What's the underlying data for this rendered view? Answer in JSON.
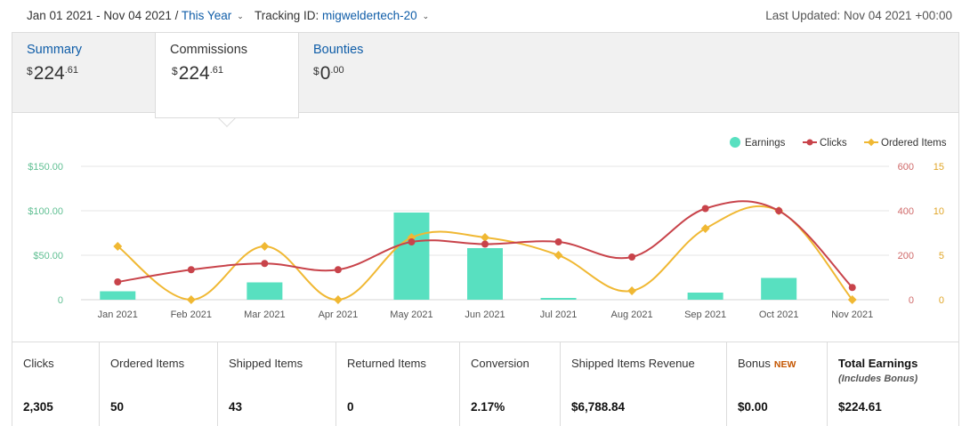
{
  "header": {
    "date_range": "Jan 01 2021 - Nov 04 2021",
    "separator": "/",
    "range_preset": "This Year",
    "tracking_label": "Tracking ID:",
    "tracking_id": "migweldertech-20",
    "last_updated": "Last Updated: Nov 04 2021 +00:00"
  },
  "tabs": [
    {
      "label": "Summary",
      "currency": "$",
      "whole": "224",
      "cents": ".61"
    },
    {
      "label": "Commissions",
      "currency": "$",
      "whole": "224",
      "cents": ".61"
    },
    {
      "label": "Bounties",
      "currency": "$",
      "whole": "0",
      "cents": ".00"
    }
  ],
  "colors": {
    "earnings": "#58e0c0",
    "clicks": "#c8434a",
    "ordered": "#f0b833",
    "link": "#0f5da8",
    "new_badge": "#c45500"
  },
  "chart_data": {
    "type": "bar",
    "categories": [
      "Jan 2021",
      "Feb 2021",
      "Mar 2021",
      "Apr 2021",
      "May 2021",
      "Jun 2021",
      "Jul 2021",
      "Aug 2021",
      "Sep 2021",
      "Oct 2021",
      "Nov 2021"
    ],
    "legend": [
      "Earnings",
      "Clicks",
      "Ordered Items"
    ],
    "legend_position": "top-right",
    "series": [
      {
        "name": "Earnings",
        "type": "bar",
        "axis": "left",
        "values": [
          9.5,
          0,
          19.5,
          0,
          98,
          58,
          2,
          0,
          8,
          24.5,
          0
        ]
      },
      {
        "name": "Clicks",
        "type": "line",
        "axis": "right1",
        "values": [
          80,
          135,
          163,
          135,
          260,
          250,
          260,
          192,
          410,
          400,
          55
        ]
      },
      {
        "name": "Ordered Items",
        "type": "line",
        "axis": "right2",
        "values": [
          6,
          0,
          6,
          0,
          7,
          7,
          5,
          1,
          8,
          10,
          0
        ]
      }
    ],
    "axes": {
      "left": {
        "ticks": [
          "0",
          "$50.00",
          "$100.00",
          "$150.00"
        ],
        "range": [
          0,
          150
        ]
      },
      "right1": {
        "ticks": [
          "0",
          "200",
          "400",
          "600"
        ],
        "range": [
          0,
          600
        ]
      },
      "right2": {
        "ticks": [
          "0",
          "5",
          "10",
          "15"
        ],
        "range": [
          0,
          15
        ]
      }
    },
    "grid": true
  },
  "stats": [
    {
      "label": "Clicks",
      "value": "2,305"
    },
    {
      "label": "Ordered Items",
      "value": "50"
    },
    {
      "label": "Shipped Items",
      "value": "43"
    },
    {
      "label": "Returned Items",
      "value": "0"
    },
    {
      "label": "Conversion",
      "value": "2.17%"
    },
    {
      "label": "Shipped Items Revenue",
      "value": "$6,788.84"
    },
    {
      "label": "Bonus",
      "badge": "NEW",
      "value": "$0.00"
    },
    {
      "label": "Total Earnings",
      "sub": "(Includes Bonus)",
      "value": "$224.61"
    }
  ]
}
